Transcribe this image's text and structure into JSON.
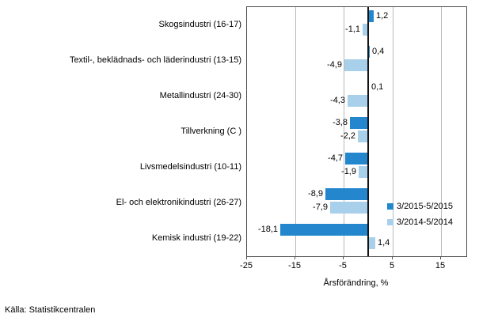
{
  "source": "Källa: Statistikcentralen",
  "chart_data": {
    "type": "bar",
    "orientation": "horizontal",
    "title": "",
    "xlabel": "Årsförändring, %",
    "ylabel": "",
    "grid": true,
    "legend_position": "inside-right",
    "xlim": [
      -25,
      20.3
    ],
    "x_ticks": [
      -25,
      -15,
      -5,
      5,
      15
    ],
    "x_tick_labels": [
      "-25",
      "-15",
      "-5",
      "5",
      "15"
    ],
    "categories": [
      "Skogsindustri (16-17)",
      "Textil-, beklädnads- och läderindustri (13-15)",
      "Metallindustri (24-30)",
      "Tillverkning (C )",
      "Livsmedelsindustri (10-11)",
      "El- och elektronikindustri (26-27)",
      "Kemisk industri (19-22)"
    ],
    "series": [
      {
        "name": "3/2015-5/2015",
        "color": "#2486cc",
        "values": [
          1.2,
          0.4,
          0.1,
          -3.8,
          -4.7,
          -8.9,
          -18.1
        ],
        "labels": [
          "1,2",
          "0,4",
          "0,1",
          "-3,8",
          "-4,7",
          "-8,9",
          "-18,1"
        ]
      },
      {
        "name": "3/2014-5/2014",
        "color": "#a9d0eb",
        "values": [
          -1.1,
          -4.9,
          -4.3,
          -2.2,
          -1.9,
          -7.9,
          1.4
        ],
        "labels": [
          "-1,1",
          "-4,9",
          "-4,3",
          "-2,2",
          "-1,9",
          "-7,9",
          "1,4"
        ]
      }
    ]
  }
}
